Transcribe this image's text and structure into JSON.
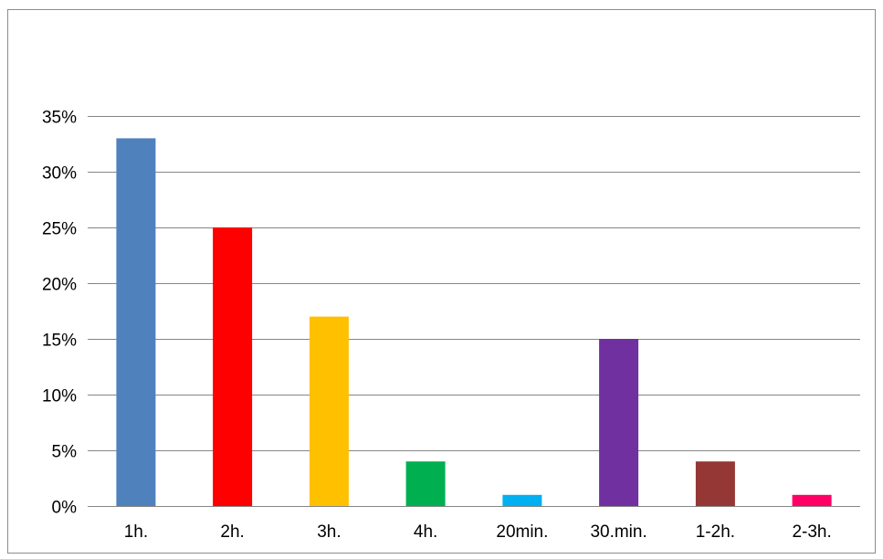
{
  "chart_data": {
    "type": "bar",
    "title": "",
    "xlabel": "",
    "ylabel": "",
    "categories": [
      "1h.",
      "2h.",
      "3h.",
      "4h.",
      "20min.",
      "30.min.",
      "1-2h.",
      "2-3h."
    ],
    "values": [
      33,
      25,
      17,
      4,
      1,
      15,
      4,
      1
    ],
    "value_unit": "%",
    "ylim": [
      0,
      35
    ],
    "yticks": [
      0,
      5,
      10,
      15,
      20,
      25,
      30,
      35
    ],
    "ytick_labels": [
      "0%",
      "5%",
      "10%",
      "15%",
      "20%",
      "25%",
      "30%",
      "35%"
    ],
    "grid": true,
    "legend": "none",
    "colors": [
      "#4f81bd",
      "#ff0000",
      "#ffc000",
      "#00b050",
      "#00b0f0",
      "#7030a0",
      "#953735",
      "#ff0066"
    ],
    "gridline_color": "#868686",
    "frame_color": "#8c8c8c"
  }
}
